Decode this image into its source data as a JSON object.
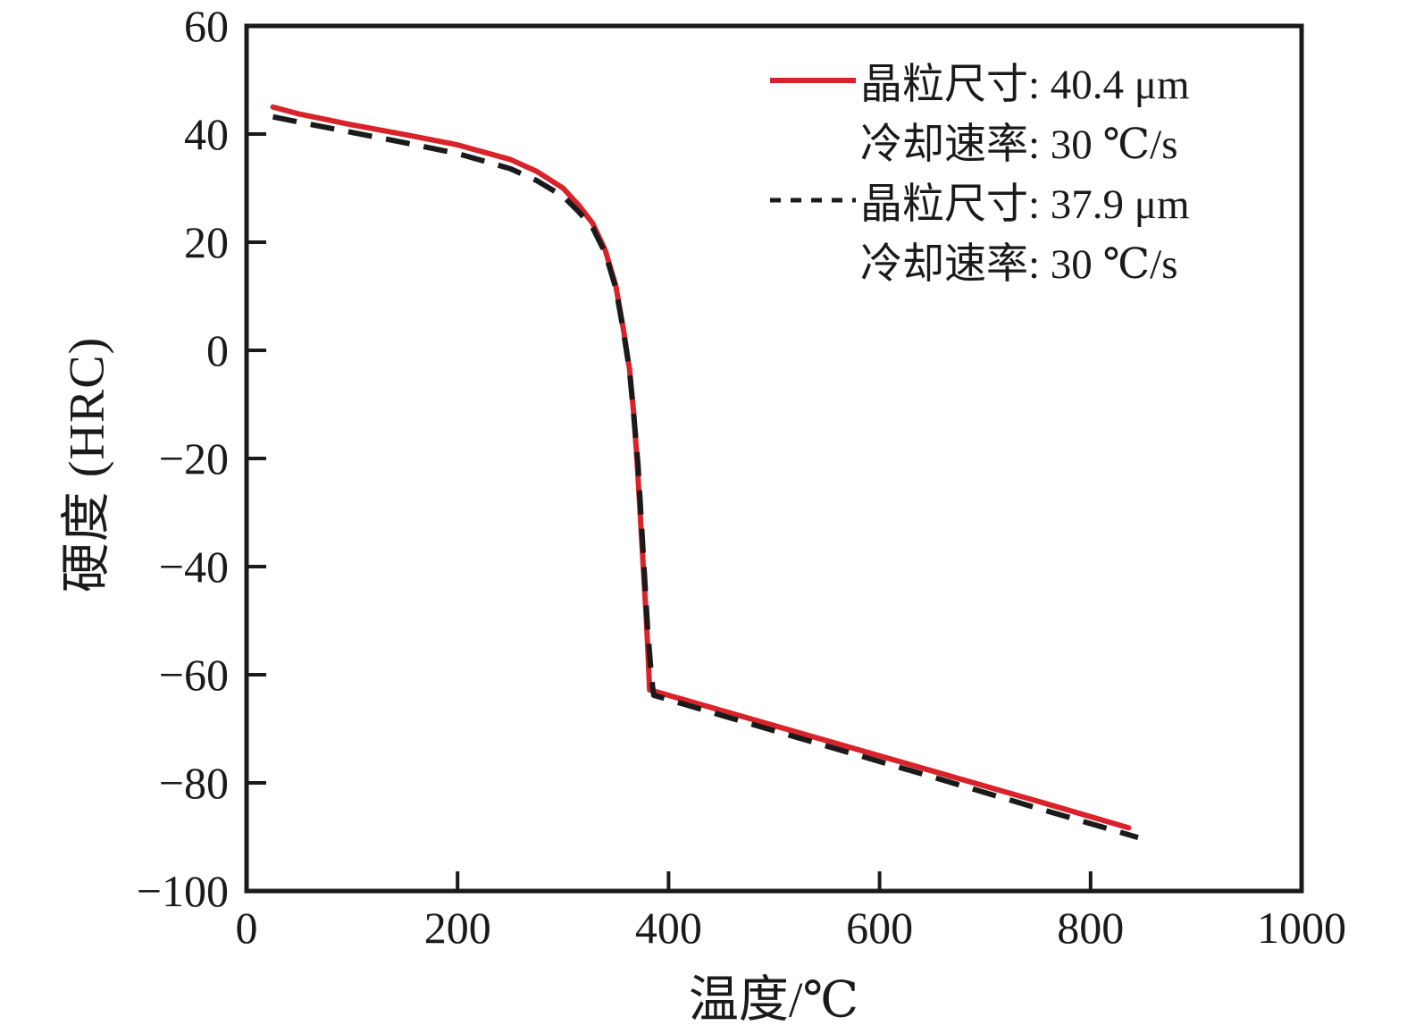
{
  "chart_data": {
    "type": "line",
    "title": "",
    "xlabel": "温度/℃",
    "ylabel": "硬度 (HRC)",
    "xlim": [
      0,
      1000
    ],
    "ylim": [
      -100,
      60
    ],
    "grid": false,
    "legend_position": "top-right-inside",
    "axis_color": "#1a1a1a",
    "xticks": {
      "values": [
        0,
        200,
        400,
        600,
        800,
        1000
      ],
      "labels": [
        "0",
        "200",
        "400",
        "600",
        "800",
        "1000"
      ]
    },
    "yticks": {
      "values": [
        60,
        40,
        20,
        0,
        -20,
        -40,
        -60,
        -80,
        -100
      ],
      "labels": [
        "60",
        "40",
        "20",
        "0",
        "−20",
        "−40",
        "−60",
        "−80",
        "−100"
      ]
    },
    "series": [
      {
        "name": "晶粒尺寸: 40.4 μm, 冷却速率: 30 ℃/s",
        "legend_line1": "晶粒尺寸: 40.4 μm",
        "legend_line2": "冷却速率: 30 ℃/s",
        "style": "solid",
        "color": "#d8232a",
        "x": [
          25,
          50,
          100,
          150,
          200,
          250,
          275,
          300,
          315,
          328,
          340,
          350,
          357,
          363,
          367,
          370,
          373,
          376,
          379,
          381,
          382,
          450,
          550,
          650,
          750,
          836
        ],
        "y": [
          45.0,
          43.7,
          41.7,
          39.9,
          38.0,
          35.3,
          33.1,
          30.0,
          26.8,
          23.5,
          18.5,
          11.9,
          4.1,
          -3.5,
          -11.8,
          -20.0,
          -30.0,
          -40.0,
          -50.0,
          -58.0,
          -62.8,
          -66.6,
          -72.2,
          -77.8,
          -83.4,
          -88.3
        ]
      },
      {
        "name": "晶粒尺寸: 37.9 μm, 冷却速率: 30 ℃/s",
        "legend_line1": "晶粒尺寸: 37.9 μm",
        "legend_line2": "冷却速率: 30 ℃/s",
        "style": "dashed",
        "color": "#1a1a1a",
        "x": [
          25,
          50,
          100,
          150,
          200,
          250,
          275,
          300,
          315,
          328,
          340,
          350,
          357,
          363,
          367,
          371,
          374,
          377,
          380,
          383,
          385,
          386,
          450,
          550,
          650,
          750,
          845
        ],
        "y": [
          43.2,
          42.2,
          40.3,
          38.4,
          36.4,
          33.6,
          31.4,
          28.5,
          25.6,
          22.7,
          18.0,
          11.5,
          3.8,
          -3.8,
          -12.0,
          -21.0,
          -31.0,
          -41.0,
          -51.0,
          -58.5,
          -62.5,
          -63.8,
          -67.5,
          -73.2,
          -78.9,
          -84.7,
          -90.1
        ]
      }
    ]
  }
}
